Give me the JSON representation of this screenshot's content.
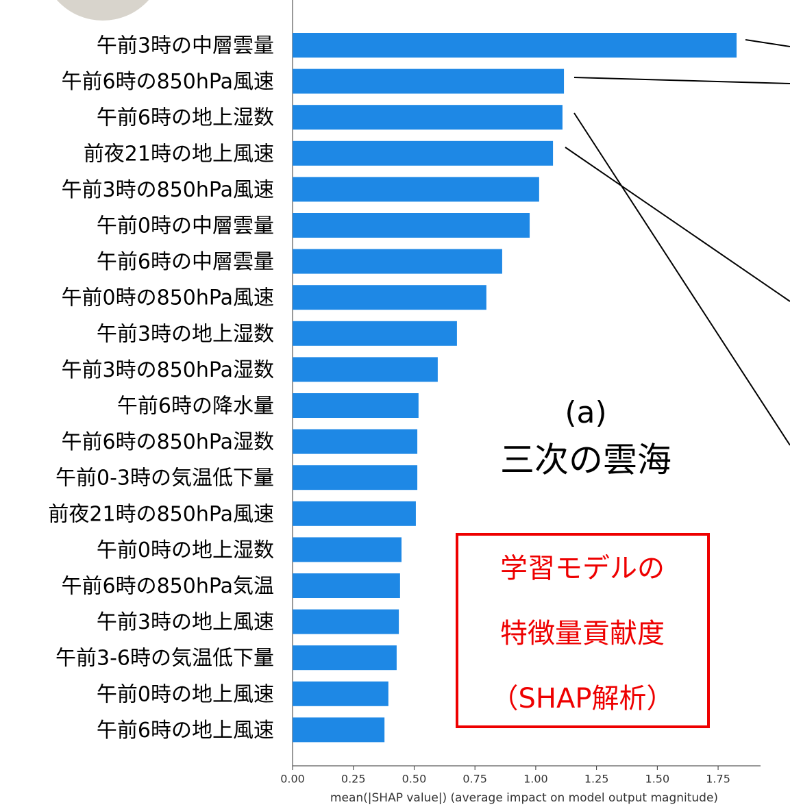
{
  "chart_data": {
    "type": "barh",
    "xlabel": "mean(|SHAP value|) (average impact on model output magnitude)",
    "annotations": [
      "(a)",
      "三次の雲海"
    ],
    "box_text": [
      "学習モデルの",
      "特徴量貢献度",
      "（SHAP解析）"
    ],
    "categories": [
      "午前3時の中層雲量",
      "午前6時の850hPa風速",
      "午前6時の地上湿数",
      "前夜21時の地上風速",
      "午前3時の850hPa風速",
      "午前0時の中層雲量",
      "午前6時の中層雲量",
      "午前0時の850hPa風速",
      "午前3時の地上湿数",
      "午前3時の850hPa湿数",
      "午前6時の降水量",
      "午前6時の850hPa湿数",
      "午前0-3時の気温低下量",
      "前夜21時の850hPa風速",
      "午前0時の地上湿数",
      "午前6時の850hPa気温",
      "午前3時の地上風速",
      "午前3-6時の気温低下量",
      "午前0時の地上風速",
      "午前6時の地上風速"
    ],
    "values": [
      1.826,
      1.116,
      1.11,
      1.071,
      1.014,
      0.975,
      0.862,
      0.797,
      0.676,
      0.597,
      0.518,
      0.513,
      0.513,
      0.507,
      0.448,
      0.442,
      0.437,
      0.428,
      0.394,
      0.378
    ],
    "color": "#1e88e5",
    "xlim": [
      0,
      1.925
    ],
    "xticks": [
      {
        "value": 0,
        "label": "0.00"
      },
      {
        "value": 0.25,
        "label": "0.25"
      },
      {
        "value": 0.5,
        "label": "0.50"
      },
      {
        "value": 0.75,
        "label": "0.75"
      },
      {
        "value": 1,
        "label": "1.00"
      },
      {
        "value": 1.25,
        "label": "1.25"
      },
      {
        "value": 1.5,
        "label": "1.50"
      },
      {
        "value": 1.75,
        "label": "1.75"
      }
    ],
    "grid": false
  }
}
